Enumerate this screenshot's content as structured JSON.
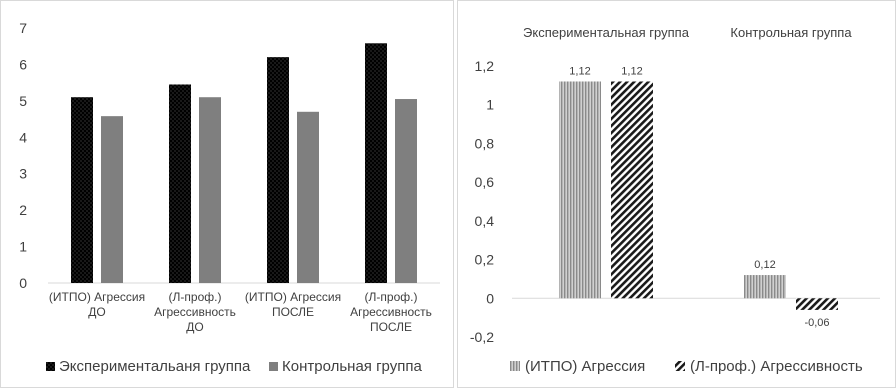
{
  "chart_data": [
    {
      "type": "bar",
      "categories": [
        [
          "(ИТПО) Агрессия",
          "ДО"
        ],
        [
          "(Л-проф.)",
          "Агрессивность",
          "ДО"
        ],
        [
          "(ИТПО) Агрессия",
          "ПОСЛЕ"
        ],
        [
          "(Л-проф.)",
          "Агрессивность",
          "ПОСЛЕ"
        ]
      ],
      "series": [
        {
          "name": "Экспериментальаня группа",
          "values": [
            5.1,
            5.45,
            6.2,
            6.58
          ],
          "color": "#000000",
          "pattern": "dots"
        },
        {
          "name": "Контрольная группа",
          "values": [
            4.58,
            5.1,
            4.7,
            5.05
          ],
          "color": "#7f7f7f",
          "pattern": "solid"
        }
      ],
      "yticks": [
        "0",
        "1",
        "2",
        "3",
        "4",
        "5",
        "6",
        "7"
      ],
      "ylim": [
        0,
        7
      ],
      "grid": false,
      "legend": "bottom"
    },
    {
      "type": "bar",
      "categories": [
        "Экспериментальная группа",
        "Контрольная группа"
      ],
      "series": [
        {
          "name": "(ИТПО) Агрессия",
          "values": [
            1.12,
            0.12
          ],
          "labels": [
            "1,12",
            "0,12"
          ],
          "color": "#a6a6a6",
          "pattern": "vertical-stripes"
        },
        {
          "name": "(Л-проф.) Агрессивность",
          "values": [
            1.12,
            -0.06
          ],
          "labels": [
            "1,12",
            "-0,06"
          ],
          "color": "#262626",
          "pattern": "diagonal-hatch"
        }
      ],
      "yticks": [
        "-0,2",
        "0",
        "0,2",
        "0,4",
        "0,6",
        "0,8",
        "1",
        "1,2"
      ],
      "ylim": [
        -0.2,
        1.2
      ],
      "grid": false,
      "category_labels_position": "top",
      "legend": "bottom"
    }
  ]
}
